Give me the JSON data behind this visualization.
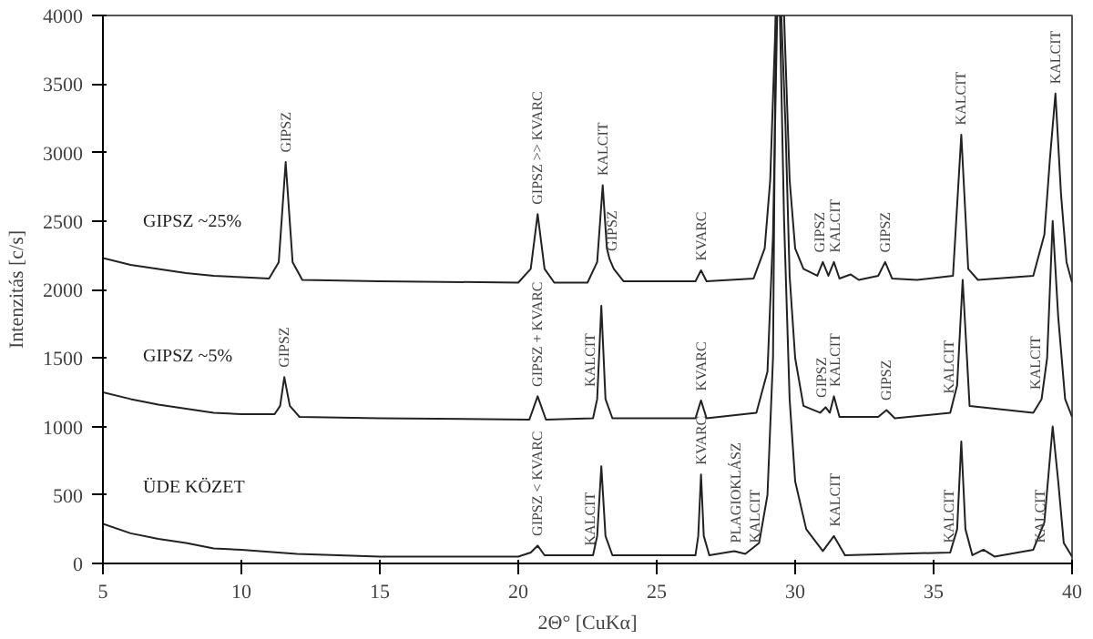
{
  "chart_data": {
    "type": "line",
    "xlabel": "2Θ° [CuKα]",
    "ylabel": "Intenzitás [c/s]",
    "xlim": [
      5,
      40
    ],
    "ylim": [
      0,
      4000
    ],
    "xticks": [
      5,
      10,
      15,
      20,
      25,
      30,
      35,
      40
    ],
    "yticks": [
      0,
      500,
      1000,
      1500,
      2000,
      2500,
      3000,
      3500,
      4000
    ],
    "grid": false,
    "marker": "none",
    "line_style": "solid",
    "series": [
      {
        "name": "GIPSZ ~25%",
        "color": "#222222",
        "x": [
          5,
          6,
          7,
          8,
          9,
          10,
          11,
          11.35,
          11.6,
          11.85,
          12.2,
          15,
          20,
          20.45,
          20.7,
          20.95,
          21.3,
          22.5,
          22.85,
          23.05,
          23.2,
          23.3,
          23.45,
          23.8,
          26.4,
          26.6,
          26.8,
          28.5,
          28.9,
          29.1,
          29.3,
          29.45,
          29.6,
          29.8,
          30.0,
          30.3,
          30.8,
          31.0,
          31.2,
          31.4,
          31.6,
          32.0,
          32.3,
          33.0,
          33.25,
          33.5,
          34.4,
          35.7,
          36.0,
          36.25,
          36.6,
          38.6,
          39.0,
          39.2,
          39.4,
          39.6,
          39.8,
          40
        ],
        "values": [
          2230,
          2180,
          2150,
          2120,
          2100,
          2090,
          2080,
          2200,
          2930,
          2200,
          2070,
          2060,
          2050,
          2150,
          2550,
          2150,
          2050,
          2050,
          2200,
          2760,
          2300,
          2220,
          2150,
          2060,
          2060,
          2140,
          2060,
          2080,
          2300,
          2800,
          4000,
          4000,
          4000,
          2800,
          2300,
          2150,
          2100,
          2200,
          2100,
          2200,
          2080,
          2110,
          2070,
          2100,
          2200,
          2080,
          2070,
          2100,
          3130,
          2150,
          2070,
          2100,
          2400,
          2950,
          3430,
          2700,
          2200,
          2050
        ]
      },
      {
        "name": "GIPSZ ~5%",
        "color": "#222222",
        "x": [
          5,
          6,
          7,
          8,
          9,
          10,
          11.2,
          11.4,
          11.55,
          11.75,
          12.1,
          15,
          20.4,
          20.7,
          21.0,
          22.7,
          22.85,
          23.0,
          23.15,
          23.4,
          26.4,
          26.6,
          26.8,
          28.6,
          29.0,
          29.2,
          29.35,
          29.5,
          29.65,
          29.8,
          30.0,
          30.3,
          30.9,
          31.1,
          31.25,
          31.4,
          31.6,
          33.0,
          33.3,
          33.6,
          35.6,
          35.85,
          36.05,
          36.3,
          38.6,
          38.9,
          39.1,
          39.3,
          39.5,
          39.75,
          40
        ],
        "values": [
          1250,
          1200,
          1160,
          1130,
          1100,
          1090,
          1090,
          1150,
          1360,
          1150,
          1070,
          1060,
          1050,
          1220,
          1050,
          1060,
          1200,
          1880,
          1200,
          1060,
          1060,
          1190,
          1060,
          1100,
          1400,
          2400,
          4000,
          4000,
          3200,
          2100,
          1500,
          1150,
          1100,
          1140,
          1100,
          1220,
          1070,
          1070,
          1120,
          1060,
          1100,
          1300,
          2070,
          1150,
          1100,
          1200,
          1500,
          2500,
          1800,
          1200,
          1070
        ]
      },
      {
        "name": "ÜDE KÖZET",
        "color": "#222222",
        "x": [
          5,
          6,
          7,
          8,
          9,
          10,
          12,
          15,
          20,
          20.45,
          20.7,
          20.95,
          22.7,
          22.85,
          23.0,
          23.15,
          23.4,
          26.4,
          26.5,
          26.6,
          26.7,
          26.9,
          27.8,
          28.2,
          28.7,
          29.0,
          29.2,
          29.3,
          29.45,
          29.6,
          29.8,
          30.0,
          30.4,
          31.0,
          31.4,
          31.8,
          35.6,
          35.85,
          36.0,
          36.15,
          36.4,
          36.8,
          37.2,
          38.6,
          39.0,
          39.3,
          39.5,
          39.7,
          40
        ],
        "values": [
          290,
          220,
          180,
          150,
          110,
          100,
          70,
          50,
          50,
          80,
          130,
          60,
          60,
          200,
          710,
          200,
          60,
          60,
          200,
          650,
          200,
          60,
          90,
          70,
          150,
          500,
          1500,
          4000,
          4000,
          2500,
          1200,
          600,
          250,
          90,
          200,
          60,
          80,
          250,
          890,
          250,
          60,
          100,
          50,
          100,
          300,
          1000,
          600,
          150,
          50
        ]
      }
    ],
    "annotations": [
      {
        "text": "GIPSZ",
        "x": 11.6,
        "y": 2960
      },
      {
        "text": "GIPSZ >> KVARC",
        "x": 20.7,
        "y": 2580
      },
      {
        "text": "KALCIT",
        "x": 23.05,
        "y": 2790
      },
      {
        "text": "GIPSZ",
        "x": 23.4,
        "y": 2240
      },
      {
        "text": "KVARC",
        "x": 26.6,
        "y": 2170
      },
      {
        "text": "GIPSZ",
        "x": 30.9,
        "y": 2230
      },
      {
        "text": "KALCIT",
        "x": 31.45,
        "y": 2230
      },
      {
        "text": "GIPSZ",
        "x": 33.25,
        "y": 2230
      },
      {
        "text": "KALCIT",
        "x": 36.0,
        "y": 3160
      },
      {
        "text": "KALCIT",
        "x": 39.4,
        "y": 3460
      },
      {
        "text": "GIPSZ",
        "x": 11.55,
        "y": 1390
      },
      {
        "text": "GIPSZ + KVARC",
        "x": 20.7,
        "y": 1250
      },
      {
        "text": "KALCIT",
        "x": 22.6,
        "y": 1250
      },
      {
        "text": "KVARC",
        "x": 26.6,
        "y": 1220
      },
      {
        "text": "GIPSZ",
        "x": 30.95,
        "y": 1170
      },
      {
        "text": "KALCIT",
        "x": 31.45,
        "y": 1250
      },
      {
        "text": "GIPSZ",
        "x": 33.3,
        "y": 1150
      },
      {
        "text": "KALCIT",
        "x": 35.55,
        "y": 1200
      },
      {
        "text": "KALCIT",
        "x": 38.7,
        "y": 1230
      },
      {
        "text": "GIPSZ < KVARC",
        "x": 20.7,
        "y": 160
      },
      {
        "text": "KALCIT",
        "x": 22.6,
        "y": 90
      },
      {
        "text": "KVARC",
        "x": 26.6,
        "y": 680
      },
      {
        "text": "PLAGIOKLÁSZ",
        "x": 27.85,
        "y": 110
      },
      {
        "text": "KALCIT",
        "x": 28.55,
        "y": 110
      },
      {
        "text": "KALCIT",
        "x": 31.45,
        "y": 230
      },
      {
        "text": "KALCIT",
        "x": 35.55,
        "y": 110
      },
      {
        "text": "KALCIT",
        "x": 38.85,
        "y": 110
      }
    ]
  }
}
